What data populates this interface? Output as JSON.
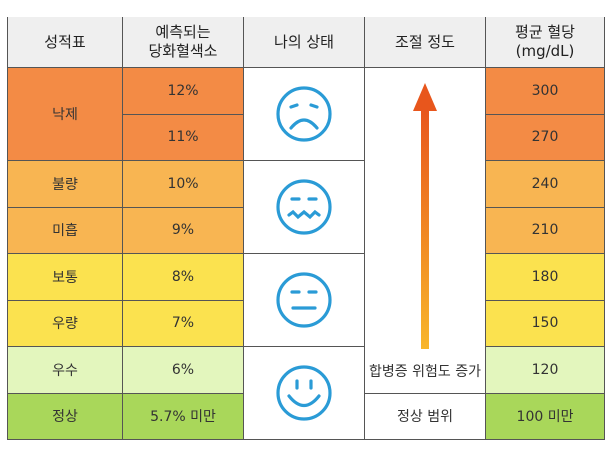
{
  "headers": [
    "성적표",
    "예측되는\n당화혈색소",
    "나의 상태",
    "조절 정도",
    "평균 혈당\n(mg/dL)"
  ],
  "grades": [
    {
      "label": "낙제",
      "rows": 2
    },
    {
      "label": "불량",
      "rows": 1
    },
    {
      "label": "미흡",
      "rows": 1
    },
    {
      "label": "보통",
      "rows": 1
    },
    {
      "label": "우량",
      "rows": 1
    },
    {
      "label": "우수",
      "rows": 1
    },
    {
      "label": "정상",
      "rows": 1
    }
  ],
  "hba1c": [
    "12%",
    "11%",
    "10%",
    "9%",
    "8%",
    "7%",
    "6%",
    "5.7% 미만"
  ],
  "glucose": [
    "300",
    "270",
    "240",
    "210",
    "180",
    "150",
    "120",
    "100 미만"
  ],
  "states": [
    "sad-face-icon",
    "worried-face-icon",
    "neutral-face-icon",
    "smile-face-icon"
  ],
  "control": {
    "arrow_label": "합병증 위험도 증가",
    "normal_label": "정상 범위"
  },
  "colors": {
    "row": [
      "#f38b45",
      "#f38b45",
      "#f8b552",
      "#f8b552",
      "#fbe24f",
      "#fbe24f",
      "#e3f6bd",
      "#a9d75a"
    ],
    "icon": "#2a9bd6",
    "arrow_top": "#e8561c",
    "arrow_bottom": "#f8b62b",
    "header": "#efefef"
  }
}
